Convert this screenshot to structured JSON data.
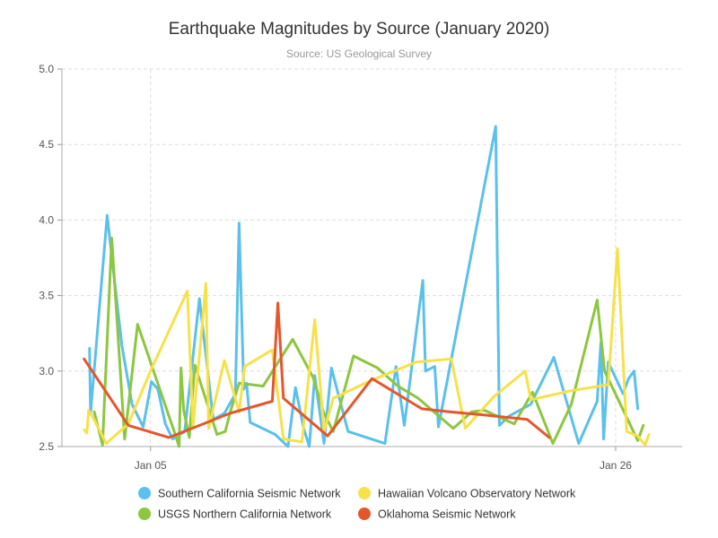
{
  "chart_data": {
    "type": "line",
    "title": "Earthquake Magnitudes by Source (January 2020)",
    "subtitle": "Source: US Geological Survey",
    "xlabel": "",
    "ylabel": "",
    "x_range": [
      "2020-01-01",
      "2020-01-29"
    ],
    "x_ticks": [
      {
        "date": "2020-01-05",
        "label": "Jan 05"
      },
      {
        "date": "2020-01-26",
        "label": "Jan 26"
      }
    ],
    "ylim": [
      2.5,
      5.0
    ],
    "y_ticks": [
      "2.5",
      "3.0",
      "3.5",
      "4.0",
      "4.5",
      "5.0"
    ],
    "grid": true,
    "legend_position": "bottom",
    "series": [
      {
        "name": "Southern California Seismic Network",
        "color": "#5bc0eb",
        "points": [
          [
            "2020-01-02T06:00",
            3.15
          ],
          [
            "2020-01-02T07:00",
            2.72
          ],
          [
            "2020-01-03T01:00",
            4.03
          ],
          [
            "2020-01-03T17:00",
            3.17
          ],
          [
            "2020-01-04T04:00",
            2.78
          ],
          [
            "2020-01-04T16:00",
            2.63
          ],
          [
            "2020-01-05T01:00",
            2.93
          ],
          [
            "2020-01-05T08:00",
            2.88
          ],
          [
            "2020-01-05T16:00",
            2.65
          ],
          [
            "2020-01-06T00:00",
            2.55
          ],
          [
            "2020-01-06T13:00",
            2.6
          ],
          [
            "2020-01-07T05:00",
            3.48
          ],
          [
            "2020-01-07T20:00",
            2.68
          ],
          [
            "2020-01-08T08:00",
            2.72
          ],
          [
            "2020-01-08T20:00",
            2.85
          ],
          [
            "2020-01-09T00:00",
            3.98
          ],
          [
            "2020-01-09T05:00",
            2.88
          ],
          [
            "2020-01-09T08:00",
            2.92
          ],
          [
            "2020-01-09T12:00",
            2.66
          ],
          [
            "2020-01-10T15:00",
            2.58
          ],
          [
            "2020-01-11T05:00",
            2.5
          ],
          [
            "2020-01-11T13:00",
            2.89
          ],
          [
            "2020-01-11T22:00",
            2.62
          ],
          [
            "2020-01-12T04:00",
            2.5
          ],
          [
            "2020-01-12T10:00",
            2.97
          ],
          [
            "2020-01-12T20:00",
            2.52
          ],
          [
            "2020-01-13T04:00",
            3.02
          ],
          [
            "2020-01-13T22:00",
            2.6
          ],
          [
            "2020-01-15T14:00",
            2.52
          ],
          [
            "2020-01-16T02:00",
            3.03
          ],
          [
            "2020-01-16T11:00",
            2.64
          ],
          [
            "2020-01-17T07:00",
            3.6
          ],
          [
            "2020-01-17T10:00",
            3.0
          ],
          [
            "2020-01-17T20:00",
            3.03
          ],
          [
            "2020-01-18T00:00",
            2.63
          ],
          [
            "2020-01-20T14:00",
            4.62
          ],
          [
            "2020-01-20T18:00",
            2.64
          ],
          [
            "2020-01-21T04:00",
            2.7
          ],
          [
            "2020-01-22T04:00",
            2.78
          ],
          [
            "2020-01-23T05:00",
            3.09
          ],
          [
            "2020-01-24T08:00",
            2.52
          ],
          [
            "2020-01-25T04:00",
            2.8
          ],
          [
            "2020-01-25T08:00",
            3.19
          ],
          [
            "2020-01-25T11:00",
            2.55
          ],
          [
            "2020-01-25T16:00",
            3.06
          ],
          [
            "2020-01-26T08:00",
            2.85
          ],
          [
            "2020-01-26T14:00",
            2.95
          ],
          [
            "2020-01-26T20:00",
            3.0
          ],
          [
            "2020-01-27T00:00",
            2.75
          ]
        ]
      },
      {
        "name": "Hawaiian Volcano Observatory Network",
        "color": "#f7e14a",
        "points": [
          [
            "2020-01-02T00:00",
            2.61
          ],
          [
            "2020-01-02T03:00",
            2.59
          ],
          [
            "2020-01-02T05:00",
            2.74
          ],
          [
            "2020-01-02T09:00",
            2.7
          ],
          [
            "2020-01-03T00:00",
            2.52
          ],
          [
            "2020-01-04T00:00",
            2.65
          ],
          [
            "2020-01-05T00:00",
            3.0
          ],
          [
            "2020-01-06T16:00",
            3.53
          ],
          [
            "2020-01-06T22:00",
            2.63
          ],
          [
            "2020-01-07T12:00",
            3.58
          ],
          [
            "2020-01-07T15:00",
            2.62
          ],
          [
            "2020-01-08T08:00",
            3.07
          ],
          [
            "2020-01-09T00:00",
            2.73
          ],
          [
            "2020-01-09T06:00",
            3.03
          ],
          [
            "2020-01-10T12:00",
            3.14
          ],
          [
            "2020-01-11T00:00",
            2.55
          ],
          [
            "2020-01-11T20:00",
            2.53
          ],
          [
            "2020-01-12T10:00",
            3.34
          ],
          [
            "2020-01-12T20:00",
            2.6
          ],
          [
            "2020-01-13T06:00",
            2.82
          ],
          [
            "2020-01-15T00:00",
            2.94
          ],
          [
            "2020-01-17T00:00",
            3.06
          ],
          [
            "2020-01-18T14:00",
            3.08
          ],
          [
            "2020-01-19T05:00",
            2.62
          ],
          [
            "2020-01-20T12:00",
            2.83
          ],
          [
            "2020-01-21T22:00",
            3.0
          ],
          [
            "2020-01-22T04:00",
            2.81
          ],
          [
            "2020-01-24T00:00",
            2.87
          ],
          [
            "2020-01-25T16:00",
            2.91
          ],
          [
            "2020-01-26T02:00",
            3.81
          ],
          [
            "2020-01-26T12:00",
            2.6
          ],
          [
            "2020-01-27T00:00",
            2.57
          ],
          [
            "2020-01-27T08:00",
            2.51
          ],
          [
            "2020-01-27T12:00",
            2.58
          ]
        ]
      },
      {
        "name": "USGS Northern California Network",
        "color": "#8dc63f",
        "points": [
          [
            "2020-01-02T11:00",
            2.73
          ],
          [
            "2020-01-02T20:00",
            2.51
          ],
          [
            "2020-01-03T06:00",
            3.88
          ],
          [
            "2020-01-03T20:00",
            2.55
          ],
          [
            "2020-01-04T10:00",
            3.31
          ],
          [
            "2020-01-06T00:00",
            2.63
          ],
          [
            "2020-01-06T07:00",
            2.5
          ],
          [
            "2020-01-06T09:00",
            3.02
          ],
          [
            "2020-01-06T12:00",
            2.74
          ],
          [
            "2020-01-06T18:00",
            2.56
          ],
          [
            "2020-01-07T00:00",
            3.04
          ],
          [
            "2020-01-08T00:00",
            2.58
          ],
          [
            "2020-01-08T09:00",
            2.6
          ],
          [
            "2020-01-08T14:00",
            2.72
          ],
          [
            "2020-01-09T00:00",
            2.92
          ],
          [
            "2020-01-10T02:00",
            2.9
          ],
          [
            "2020-01-11T10:00",
            3.21
          ],
          [
            "2020-01-12T08:00",
            2.96
          ],
          [
            "2020-01-12T20:00",
            2.72
          ],
          [
            "2020-01-13T06:00",
            2.6
          ],
          [
            "2020-01-14T04:00",
            3.1
          ],
          [
            "2020-01-15T06:00",
            3.02
          ],
          [
            "2020-01-16T04:00",
            2.9
          ],
          [
            "2020-01-17T02:00",
            2.82
          ],
          [
            "2020-01-18T16:00",
            2.62
          ],
          [
            "2020-01-19T12:00",
            2.73
          ],
          [
            "2020-01-20T02:00",
            2.74
          ],
          [
            "2020-01-21T10:00",
            2.65
          ],
          [
            "2020-01-22T06:00",
            2.86
          ],
          [
            "2020-01-23T04:00",
            2.52
          ],
          [
            "2020-01-24T00:00",
            2.78
          ],
          [
            "2020-01-25T04:00",
            3.47
          ],
          [
            "2020-01-25T12:00",
            3.0
          ],
          [
            "2020-01-27T00:00",
            2.54
          ],
          [
            "2020-01-27T06:00",
            2.64
          ]
        ]
      },
      {
        "name": "Oklahoma Seismic Network",
        "color": "#e4572e",
        "points": [
          [
            "2020-01-02T00:00",
            3.08
          ],
          [
            "2020-01-04T00:00",
            2.64
          ],
          [
            "2020-01-05T20:00",
            2.56
          ],
          [
            "2020-01-08T14:00",
            2.72
          ],
          [
            "2020-01-10T12:00",
            2.8
          ],
          [
            "2020-01-10T18:00",
            3.45
          ],
          [
            "2020-01-11T00:00",
            2.82
          ],
          [
            "2020-01-13T00:00",
            2.57
          ],
          [
            "2020-01-15T00:00",
            2.95
          ],
          [
            "2020-01-17T06:00",
            2.75
          ],
          [
            "2020-01-18T12:00",
            2.73
          ],
          [
            "2020-01-20T00:00",
            2.71
          ],
          [
            "2020-01-22T00:00",
            2.68
          ],
          [
            "2020-01-23T00:00",
            2.56
          ]
        ]
      }
    ]
  }
}
